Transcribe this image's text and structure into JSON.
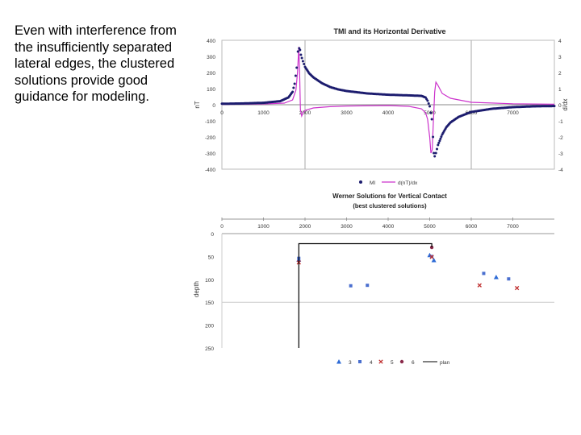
{
  "slide": {
    "caption": "Even with interference from the insufficiently separated lateral edges, the clustered solutions provide good guidance for modeling."
  },
  "chart_data": [
    {
      "type": "line",
      "title": "TMI and its Horizontal Derivative",
      "ylabel": "nT",
      "y2label": "d/dx",
      "xlim": [
        0,
        8000
      ],
      "ylim": [
        -400,
        400
      ],
      "y2lim": [
        -4,
        4
      ],
      "grid": true,
      "x_ticks": [
        "0",
        "1000",
        "2000",
        "3000",
        "4000",
        "5000",
        "6000",
        "7000"
      ],
      "y_ticks": [
        "400",
        "300",
        "200",
        "100",
        "0",
        "-100",
        "-200",
        "-300",
        "-400"
      ],
      "y2_ticks": [
        "4",
        "3",
        "2",
        "1",
        "0",
        "-1",
        "-2",
        "-3",
        "-4"
      ],
      "legend": "bottom",
      "series": [
        {
          "name": "MI",
          "axis": "left",
          "color": "#1c1c6e",
          "style": "dots",
          "x": [
            0,
            500,
            1000,
            1400,
            1600,
            1700,
            1750,
            1800,
            1830,
            1860,
            1880,
            1900,
            1950,
            2000,
            2100,
            2200,
            2400,
            2600,
            2800,
            3000,
            3500,
            4000,
            4500,
            4800,
            4900,
            4950,
            5000,
            5050,
            5080,
            5100,
            5120,
            5150,
            5200,
            5300,
            5400,
            5500,
            5700,
            6000,
            6500,
            7000,
            7500,
            8000
          ],
          "y": [
            6,
            8,
            12,
            22,
            45,
            80,
            130,
            230,
            330,
            350,
            340,
            310,
            270,
            235,
            195,
            170,
            135,
            110,
            95,
            85,
            70,
            62,
            58,
            55,
            45,
            25,
            -10,
            -90,
            -200,
            -300,
            -320,
            -300,
            -250,
            -185,
            -140,
            -110,
            -75,
            -45,
            -25,
            -15,
            -10,
            -8
          ]
        },
        {
          "name": "d(nT)/dx",
          "axis": "right",
          "color": "#cc33cc",
          "style": "line",
          "x": [
            0,
            1000,
            1500,
            1700,
            1780,
            1820,
            1850,
            1870,
            1890,
            1920,
            1950,
            2000,
            2200,
            2600,
            3000,
            4000,
            4500,
            4800,
            4900,
            4950,
            4980,
            5000,
            5030,
            5060,
            5090,
            5120,
            5150,
            5200,
            5300,
            5500,
            6000,
            7000,
            8000
          ],
          "y": [
            0.02,
            0.05,
            0.1,
            0.3,
            0.9,
            2.0,
            3.6,
            2.0,
            -0.3,
            -0.7,
            -0.5,
            -0.35,
            -0.2,
            -0.12,
            -0.08,
            -0.05,
            -0.1,
            -0.25,
            -0.5,
            -0.9,
            -1.6,
            -2.0,
            -3.0,
            -2.8,
            -1.0,
            0.8,
            1.4,
            1.2,
            0.7,
            0.4,
            0.15,
            0.06,
            0.03
          ]
        }
      ]
    },
    {
      "type": "scatter",
      "title": "Werner Solutions for Vertical Contact",
      "subtitle": "(best clustered solutions)",
      "ylabel": "depth",
      "xlim": [
        0,
        8000
      ],
      "ylim": [
        250,
        0
      ],
      "grid": true,
      "x_ticks": [
        "0",
        "1000",
        "2000",
        "3000",
        "4000",
        "5000",
        "6000",
        "7000"
      ],
      "y_ticks": [
        "0",
        "50",
        "100",
        "150",
        "200",
        "250"
      ],
      "legend": "bottom",
      "series": [
        {
          "name": "3",
          "marker": "triangle",
          "color": "#2e6bd6",
          "points": [
            [
              5100,
              58
            ],
            [
              5000,
              47
            ],
            [
              6600,
              95
            ],
            [
              1850,
              57
            ]
          ]
        },
        {
          "name": "4",
          "marker": "square",
          "color": "#4a6fcf",
          "points": [
            [
              3100,
              114
            ],
            [
              3500,
              113
            ],
            [
              6300,
              87
            ],
            [
              6900,
              99
            ],
            [
              1850,
              54
            ],
            [
              5050,
              50
            ]
          ]
        },
        {
          "name": "5",
          "marker": "x",
          "color": "#c03030",
          "points": [
            [
              1850,
              63
            ],
            [
              5050,
              51
            ],
            [
              6200,
              113
            ],
            [
              7100,
              119
            ]
          ]
        },
        {
          "name": "6",
          "marker": "circle",
          "color": "#8a2a4a",
          "points": [
            [
              5050,
              30
            ]
          ]
        },
        {
          "name": "plan",
          "marker": "line",
          "color": "#000000",
          "points": [
            [
              1850,
              250
            ],
            [
              1850,
              22
            ],
            [
              5050,
              22
            ],
            [
              5050,
              30
            ]
          ]
        }
      ]
    }
  ]
}
